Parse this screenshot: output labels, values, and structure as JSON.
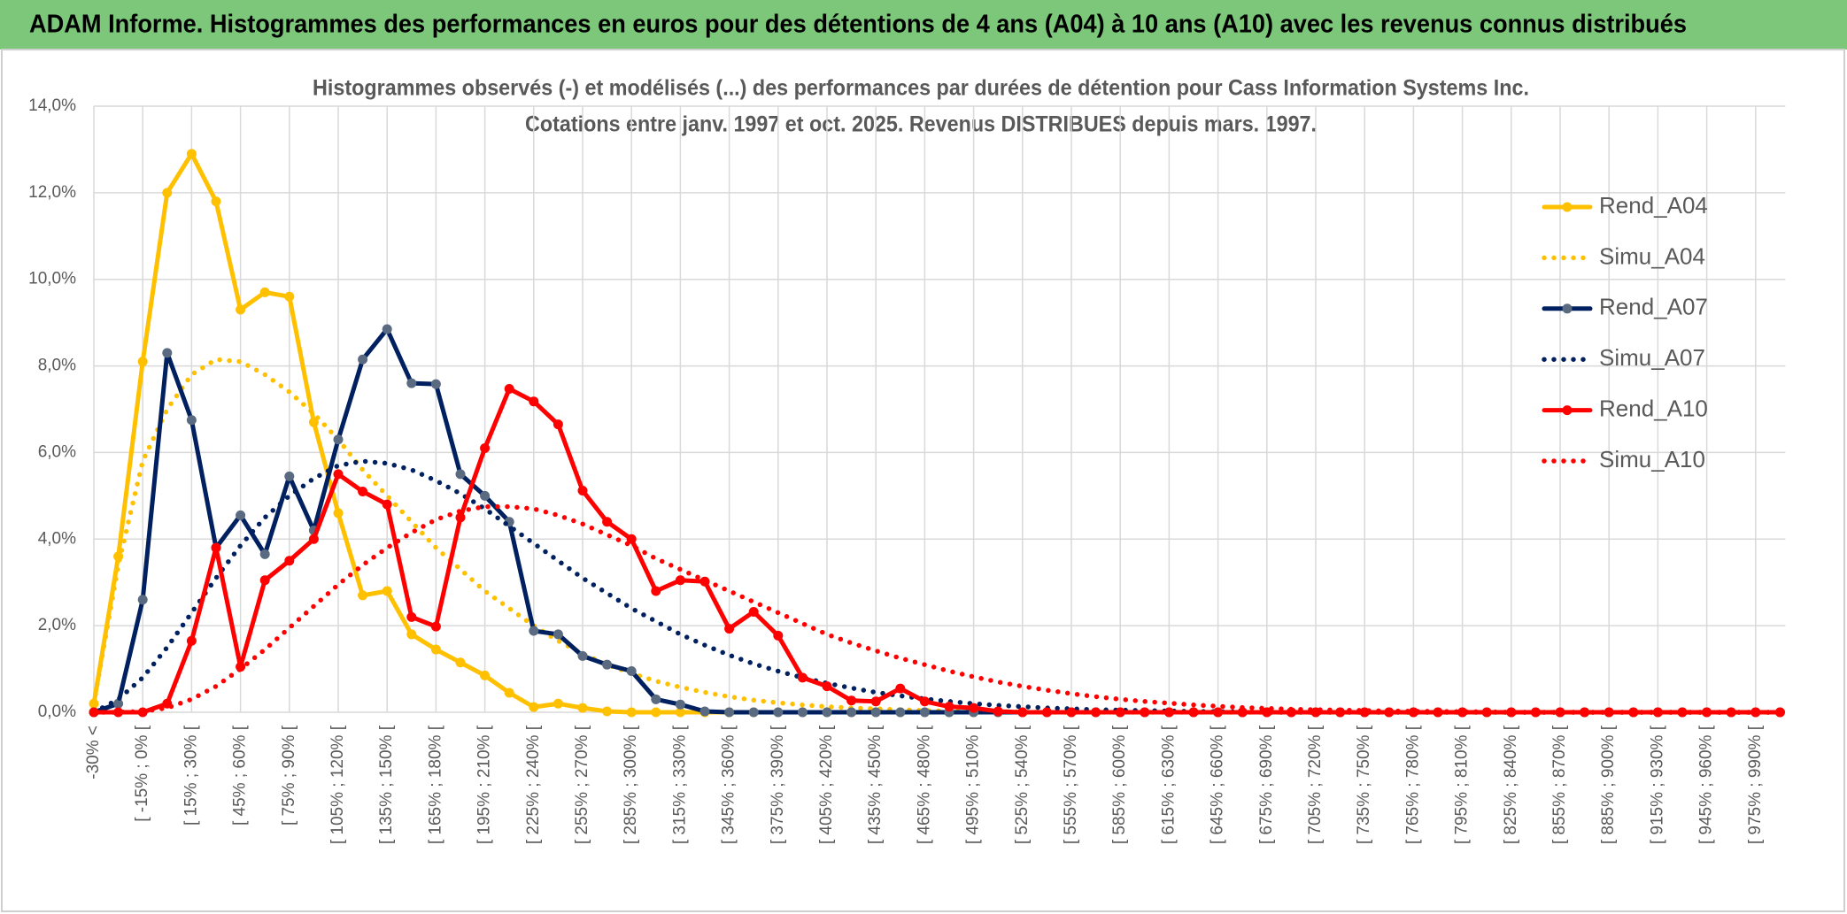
{
  "chart_data": {
    "type": "line",
    "title": "ADAM Informe. Histogrammes des performances en euros pour des détentions de 4 ans (A04) à 10 ans (A10) avec les revenus connus distribués",
    "subtitle": [
      "Histogrammes observés (-) et modélisés (...) des performances par durées de détention pour Cass Information Systems Inc.",
      "Cotations entre janv. 1997 et oct. 2025. Revenus DISTRIBUES depuis mars. 1997."
    ],
    "categories": [
      "-30% <",
      null,
      "[ -15% ; 0% [",
      null,
      "[ 15% ; 30% [",
      null,
      "[ 45% ; 60% [",
      null,
      "[ 75% ; 90% [",
      null,
      "[ 105% ; 120% [",
      null,
      "[ 135% ; 150% [",
      null,
      "[ 165% ; 180% [",
      null,
      "[ 195% ; 210% [",
      null,
      "[ 225% ; 240% [",
      null,
      "[ 255% ; 270% [",
      null,
      "[ 285% ; 300% [",
      null,
      "[ 315% ; 330% [",
      null,
      "[ 345% ; 360% [",
      null,
      "[ 375% ; 390% [",
      null,
      "[ 405% ; 420% [",
      null,
      "[ 435% ; 450% [",
      null,
      "[ 465% ; 480% [",
      null,
      "[ 495% ; 510% [",
      null,
      "[ 525% ; 540% [",
      null,
      "[ 555% ; 570% [",
      null,
      "[ 585% ; 600% [",
      null,
      "[ 615% ; 630% [",
      null,
      "[ 645% ; 660% [",
      null,
      "[ 675% ; 690% [",
      null,
      "[ 705% ; 720% [",
      null,
      "[ 735% ; 750% [",
      null,
      "[ 765% ; 780% [",
      null,
      "[ 795% ; 810% [",
      null,
      "[ 825% ; 840% [",
      null,
      "[ 855% ; 870% [",
      null,
      "[ 885% ; 900% [",
      null,
      "[ 915% ; 930% [",
      null,
      "[ 945% ; 960% [",
      null,
      "[ 975% ; 990% [",
      null
    ],
    "series": [
      {
        "name": "Rend_A04",
        "color": "#FFC000",
        "style": "solid",
        "marker_color": "#FFC000",
        "values": [
          0.2,
          3.6,
          8.1,
          12.0,
          12.9,
          11.8,
          9.3,
          9.7,
          9.6,
          6.7,
          4.6,
          2.7,
          2.8,
          1.8,
          1.45,
          1.15,
          0.85,
          0.45,
          0.12,
          0.2,
          0.1,
          0.02,
          0,
          0,
          0,
          0,
          0,
          0,
          0,
          0,
          0,
          0,
          0,
          0,
          0,
          0,
          0,
          0,
          0,
          0,
          0,
          0,
          0,
          0,
          0,
          0,
          0,
          0,
          0,
          0,
          0,
          0,
          0,
          0,
          0,
          0,
          0,
          0,
          0,
          0,
          0,
          0,
          0,
          0,
          0,
          0,
          0,
          0,
          0,
          0
        ]
      },
      {
        "name": "Simu_A04",
        "color": "#FFC000",
        "style": "dotted",
        "values": [
          0.2,
          3.4,
          5.8,
          7.0,
          7.8,
          8.15,
          8.1,
          7.8,
          7.4,
          6.9,
          6.3,
          5.6,
          5.0,
          4.4,
          3.8,
          3.3,
          2.8,
          2.4,
          2.0,
          1.65,
          1.35,
          1.1,
          0.9,
          0.72,
          0.58,
          0.46,
          0.36,
          0.28,
          0.22,
          0.17,
          0.13,
          0.1,
          0.08,
          0.06,
          0.04,
          0.03,
          0.02,
          0.015,
          0.01,
          0,
          0,
          0,
          0,
          0,
          0,
          0,
          0,
          0,
          0,
          0,
          0,
          0,
          0,
          0,
          0,
          0,
          0,
          0,
          0,
          0,
          0,
          0,
          0,
          0,
          0,
          0,
          0,
          0,
          0,
          0
        ]
      },
      {
        "name": "Rend_A07",
        "color": "#002060",
        "style": "solid",
        "marker_color": "#5A6A80",
        "values": [
          0,
          0.2,
          2.6,
          8.3,
          6.75,
          3.8,
          4.55,
          3.65,
          5.45,
          4.2,
          6.3,
          8.15,
          8.85,
          7.6,
          7.58,
          5.5,
          5.0,
          4.4,
          1.88,
          1.8,
          1.3,
          1.1,
          0.95,
          0.3,
          0.18,
          0.02,
          0,
          0,
          0,
          0,
          0,
          0,
          0,
          0,
          0,
          0,
          0,
          0,
          0,
          0,
          0,
          0,
          0,
          0,
          0,
          0,
          0,
          0,
          0,
          0,
          0,
          0,
          0,
          0,
          0,
          0,
          0,
          0,
          0,
          0,
          0,
          0,
          0,
          0,
          0,
          0,
          0,
          0,
          0,
          0
        ]
      },
      {
        "name": "Simu_A07",
        "color": "#002060",
        "style": "dotted",
        "values": [
          0,
          0.3,
          0.8,
          1.5,
          2.3,
          3.1,
          3.85,
          4.5,
          5.0,
          5.4,
          5.7,
          5.8,
          5.75,
          5.6,
          5.35,
          5.05,
          4.7,
          4.3,
          3.9,
          3.5,
          3.1,
          2.75,
          2.4,
          2.1,
          1.8,
          1.55,
          1.32,
          1.12,
          0.95,
          0.8,
          0.67,
          0.56,
          0.46,
          0.38,
          0.31,
          0.25,
          0.2,
          0.16,
          0.13,
          0.1,
          0.08,
          0.06,
          0.05,
          0.04,
          0.03,
          0.02,
          0.015,
          0.01,
          0,
          0,
          0,
          0,
          0,
          0,
          0,
          0,
          0,
          0,
          0,
          0,
          0,
          0,
          0,
          0,
          0,
          0,
          0,
          0,
          0,
          0
        ]
      },
      {
        "name": "Rend_A10",
        "color": "#FF0000",
        "style": "solid",
        "marker_color": "#FF0000",
        "values": [
          0,
          0,
          0,
          0.2,
          1.65,
          3.8,
          1.05,
          3.05,
          3.5,
          4.0,
          5.5,
          5.1,
          4.8,
          2.2,
          1.98,
          4.5,
          6.1,
          7.47,
          7.18,
          6.65,
          5.12,
          4.4,
          4.0,
          2.8,
          3.05,
          3.02,
          1.93,
          2.32,
          1.77,
          0.8,
          0.6,
          0.27,
          0.25,
          0.55,
          0.25,
          0.13,
          0.1,
          0.02,
          0,
          0,
          0,
          0,
          0,
          0,
          0,
          0,
          0,
          0,
          0,
          0,
          0,
          0,
          0,
          0,
          0,
          0,
          0,
          0,
          0,
          0,
          0,
          0,
          0,
          0,
          0,
          0,
          0,
          0,
          0,
          0
        ]
      },
      {
        "name": "Simu_A10",
        "color": "#FF0000",
        "style": "dotted",
        "values": [
          0,
          0,
          0.02,
          0.1,
          0.3,
          0.6,
          1.0,
          1.45,
          1.95,
          2.45,
          2.95,
          3.4,
          3.8,
          4.15,
          4.45,
          4.65,
          4.75,
          4.75,
          4.7,
          4.55,
          4.35,
          4.1,
          3.85,
          3.55,
          3.3,
          3.05,
          2.8,
          2.55,
          2.3,
          2.05,
          1.8,
          1.6,
          1.42,
          1.25,
          1.1,
          0.95,
          0.82,
          0.7,
          0.6,
          0.51,
          0.43,
          0.36,
          0.3,
          0.25,
          0.21,
          0.17,
          0.14,
          0.11,
          0.09,
          0.07,
          0.06,
          0.05,
          0.04,
          0.03,
          0.025,
          0.02,
          0.015,
          0.01,
          0,
          0,
          0,
          0,
          0,
          0,
          0,
          0,
          0,
          0,
          0,
          0
        ]
      }
    ],
    "ylim": [
      0,
      14
    ],
    "yticks": [
      {
        "value": 0,
        "label": "0,0%"
      },
      {
        "value": 2,
        "label": "2,0%"
      },
      {
        "value": 4,
        "label": "4,0%"
      },
      {
        "value": 6,
        "label": "6,0%"
      },
      {
        "value": 8,
        "label": "8,0%"
      },
      {
        "value": 10,
        "label": "10,0%"
      },
      {
        "value": 12,
        "label": "12,0%"
      },
      {
        "value": 14,
        "label": "14,0%"
      }
    ],
    "grid": true,
    "legend": "right"
  }
}
